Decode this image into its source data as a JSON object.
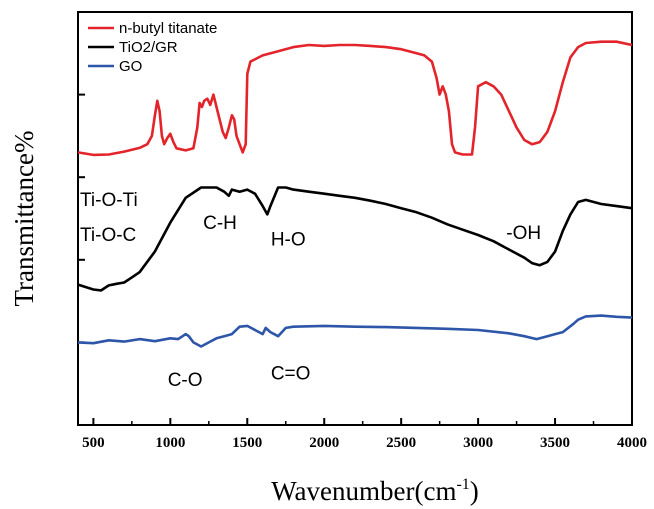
{
  "chart_data": {
    "type": "line",
    "title": "",
    "xlabel": "Wavenumber(cm",
    "xlabel_sup": "-1",
    "xlabel_close": ")",
    "ylabel": "Transmittance%",
    "xlim": [
      400,
      4000
    ],
    "ylim": [
      0,
      100
    ],
    "x_ticks": [
      500,
      1000,
      1500,
      2000,
      2500,
      3000,
      3500,
      4000
    ],
    "x_tick_labels": [
      "500",
      "1000",
      "1500",
      "2000",
      "2500",
      "3000",
      "3500",
      "4000"
    ],
    "y_ticks": [
      20,
      40,
      60,
      80
    ],
    "grid": false,
    "legend_position": "top-left",
    "series": [
      {
        "name": "n-butyl titanate",
        "color": "#e3242b",
        "points": [
          [
            400,
            66
          ],
          [
            500,
            65.4
          ],
          [
            600,
            65.5
          ],
          [
            700,
            66.2
          ],
          [
            800,
            67.1
          ],
          [
            850,
            68
          ],
          [
            880,
            70
          ],
          [
            900,
            75
          ],
          [
            915,
            78.5
          ],
          [
            930,
            76
          ],
          [
            945,
            70
          ],
          [
            960,
            68
          ],
          [
            980,
            69.5
          ],
          [
            1000,
            70.5
          ],
          [
            1020,
            68.5
          ],
          [
            1040,
            67
          ],
          [
            1100,
            66.5
          ],
          [
            1150,
            67
          ],
          [
            1175,
            72
          ],
          [
            1190,
            78
          ],
          [
            1205,
            77
          ],
          [
            1220,
            78.5
          ],
          [
            1240,
            79
          ],
          [
            1260,
            77.5
          ],
          [
            1280,
            80
          ],
          [
            1300,
            77
          ],
          [
            1320,
            74
          ],
          [
            1340,
            71
          ],
          [
            1360,
            69.5
          ],
          [
            1380,
            72
          ],
          [
            1400,
            75
          ],
          [
            1415,
            74
          ],
          [
            1430,
            70
          ],
          [
            1450,
            68
          ],
          [
            1470,
            66
          ],
          [
            1490,
            68
          ],
          [
            1500,
            85
          ],
          [
            1520,
            88
          ],
          [
            1600,
            89.5
          ],
          [
            1700,
            90.5
          ],
          [
            1800,
            91.5
          ],
          [
            1900,
            92
          ],
          [
            2000,
            91.8
          ],
          [
            2100,
            92
          ],
          [
            2200,
            92
          ],
          [
            2300,
            91.8
          ],
          [
            2400,
            91.5
          ],
          [
            2500,
            91
          ],
          [
            2600,
            90
          ],
          [
            2650,
            89.5
          ],
          [
            2700,
            88
          ],
          [
            2730,
            84
          ],
          [
            2750,
            80
          ],
          [
            2770,
            82
          ],
          [
            2790,
            80
          ],
          [
            2810,
            76
          ],
          [
            2830,
            68
          ],
          [
            2850,
            66
          ],
          [
            2900,
            65.5
          ],
          [
            2960,
            65.5
          ],
          [
            2980,
            72
          ],
          [
            3000,
            82
          ],
          [
            3050,
            83
          ],
          [
            3100,
            82
          ],
          [
            3150,
            80
          ],
          [
            3200,
            76
          ],
          [
            3250,
            72
          ],
          [
            3300,
            69
          ],
          [
            3350,
            68
          ],
          [
            3400,
            68.5
          ],
          [
            3450,
            71
          ],
          [
            3500,
            76
          ],
          [
            3550,
            83
          ],
          [
            3600,
            89
          ],
          [
            3650,
            91.5
          ],
          [
            3700,
            92.5
          ],
          [
            3800,
            92.8
          ],
          [
            3900,
            92.8
          ],
          [
            4000,
            92
          ]
        ]
      },
      {
        "name": "TiO2/GR",
        "color": "#000000",
        "points": [
          [
            400,
            34
          ],
          [
            500,
            32.8
          ],
          [
            550,
            32.6
          ],
          [
            600,
            33.8
          ],
          [
            650,
            34.2
          ],
          [
            700,
            34.5
          ],
          [
            800,
            37
          ],
          [
            900,
            42
          ],
          [
            1000,
            49
          ],
          [
            1100,
            55
          ],
          [
            1200,
            57.5
          ],
          [
            1300,
            57.5
          ],
          [
            1350,
            56.5
          ],
          [
            1380,
            55.5
          ],
          [
            1400,
            57
          ],
          [
            1450,
            56.5
          ],
          [
            1500,
            57
          ],
          [
            1550,
            56
          ],
          [
            1600,
            53
          ],
          [
            1630,
            51
          ],
          [
            1650,
            53
          ],
          [
            1700,
            57.5
          ],
          [
            1750,
            57.5
          ],
          [
            1800,
            57
          ],
          [
            1900,
            56.5
          ],
          [
            2000,
            56
          ],
          [
            2100,
            55.5
          ],
          [
            2200,
            55
          ],
          [
            2300,
            54.3
          ],
          [
            2400,
            53.5
          ],
          [
            2500,
            52.5
          ],
          [
            2600,
            51.5
          ],
          [
            2700,
            50.2
          ],
          [
            2800,
            48.6
          ],
          [
            2900,
            47.3
          ],
          [
            3000,
            46
          ],
          [
            3100,
            44.5
          ],
          [
            3200,
            42.5
          ],
          [
            3300,
            40.5
          ],
          [
            3350,
            39.2
          ],
          [
            3400,
            38.7
          ],
          [
            3450,
            39.5
          ],
          [
            3500,
            42
          ],
          [
            3550,
            47
          ],
          [
            3600,
            51
          ],
          [
            3650,
            54
          ],
          [
            3700,
            54.5
          ],
          [
            3800,
            53.5
          ],
          [
            3900,
            53
          ],
          [
            4000,
            52.5
          ]
        ]
      },
      {
        "name": "GO",
        "color": "#2e56a8",
        "points": [
          [
            400,
            20
          ],
          [
            500,
            19.8
          ],
          [
            600,
            20.5
          ],
          [
            700,
            20.2
          ],
          [
            800,
            20.8
          ],
          [
            900,
            20.3
          ],
          [
            1000,
            21
          ],
          [
            1050,
            20.8
          ],
          [
            1080,
            21.5
          ],
          [
            1100,
            22
          ],
          [
            1120,
            21.5
          ],
          [
            1150,
            20
          ],
          [
            1200,
            19
          ],
          [
            1250,
            20
          ],
          [
            1300,
            21
          ],
          [
            1350,
            21.5
          ],
          [
            1400,
            22
          ],
          [
            1450,
            23.8
          ],
          [
            1500,
            24
          ],
          [
            1550,
            23
          ],
          [
            1600,
            22
          ],
          [
            1620,
            23.5
          ],
          [
            1650,
            22.5
          ],
          [
            1700,
            21.5
          ],
          [
            1750,
            23.5
          ],
          [
            1800,
            23.8
          ],
          [
            2000,
            24
          ],
          [
            2200,
            23.8
          ],
          [
            2400,
            23.7
          ],
          [
            2600,
            23.5
          ],
          [
            2800,
            23.3
          ],
          [
            3000,
            23
          ],
          [
            3200,
            22.2
          ],
          [
            3300,
            21.5
          ],
          [
            3380,
            20.8
          ],
          [
            3450,
            21.5
          ],
          [
            3500,
            22
          ],
          [
            3550,
            22.5
          ],
          [
            3620,
            24.5
          ],
          [
            3650,
            25.5
          ],
          [
            3700,
            26.3
          ],
          [
            3800,
            26.5
          ],
          [
            3900,
            26.2
          ],
          [
            4000,
            26
          ]
        ]
      }
    ],
    "annotations": [
      {
        "text": "Ti-O-Ti",
        "x": 400,
        "y": 53
      },
      {
        "text": "Ti-O-C",
        "x": 400,
        "y": 44.5
      },
      {
        "text": "C-H",
        "x": 1200,
        "y": 47.5
      },
      {
        "text": "H-O",
        "x": 1640,
        "y": 43.5
      },
      {
        "text": "-OH",
        "x": 3170,
        "y": 45
      },
      {
        "text": "C-O",
        "x": 970,
        "y": 9.5
      },
      {
        "text": "C=O",
        "x": 1640,
        "y": 11
      }
    ]
  }
}
